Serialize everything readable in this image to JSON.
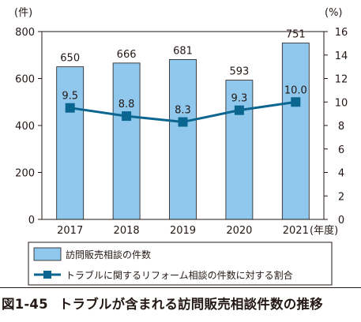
{
  "chart_data": {
    "type": "bar",
    "categories": [
      "2017",
      "2018",
      "2019",
      "2020",
      "2021"
    ],
    "x_unit": "(年度)",
    "series": [
      {
        "name": "訪問販売相談の件数",
        "type": "bar",
        "axis": "left",
        "values": [
          650,
          666,
          681,
          593,
          751
        ],
        "color": "#8fc8ec"
      },
      {
        "name": "トラブルに関するリフォーム相談の件数に対する割合",
        "type": "line",
        "axis": "right",
        "values": [
          9.5,
          8.8,
          8.3,
          9.3,
          10.0
        ],
        "labels": [
          "9.5",
          "8.8",
          "8.3",
          "9.3",
          "10.0"
        ],
        "color": "#0a6690"
      }
    ],
    "y_left": {
      "unit": "(件)",
      "ylim": [
        0,
        800
      ],
      "ticks": [
        0,
        200,
        400,
        600,
        800
      ]
    },
    "y_right": {
      "unit": "(%)",
      "ylim": [
        0,
        16
      ],
      "ticks": [
        0,
        2,
        4,
        6,
        8,
        10,
        12,
        14,
        16
      ]
    },
    "grid": false,
    "legend_position": "bottom"
  },
  "caption": {
    "number": "図1-45",
    "title": "トラブルが含まれる訪問販売相談件数の推移"
  }
}
